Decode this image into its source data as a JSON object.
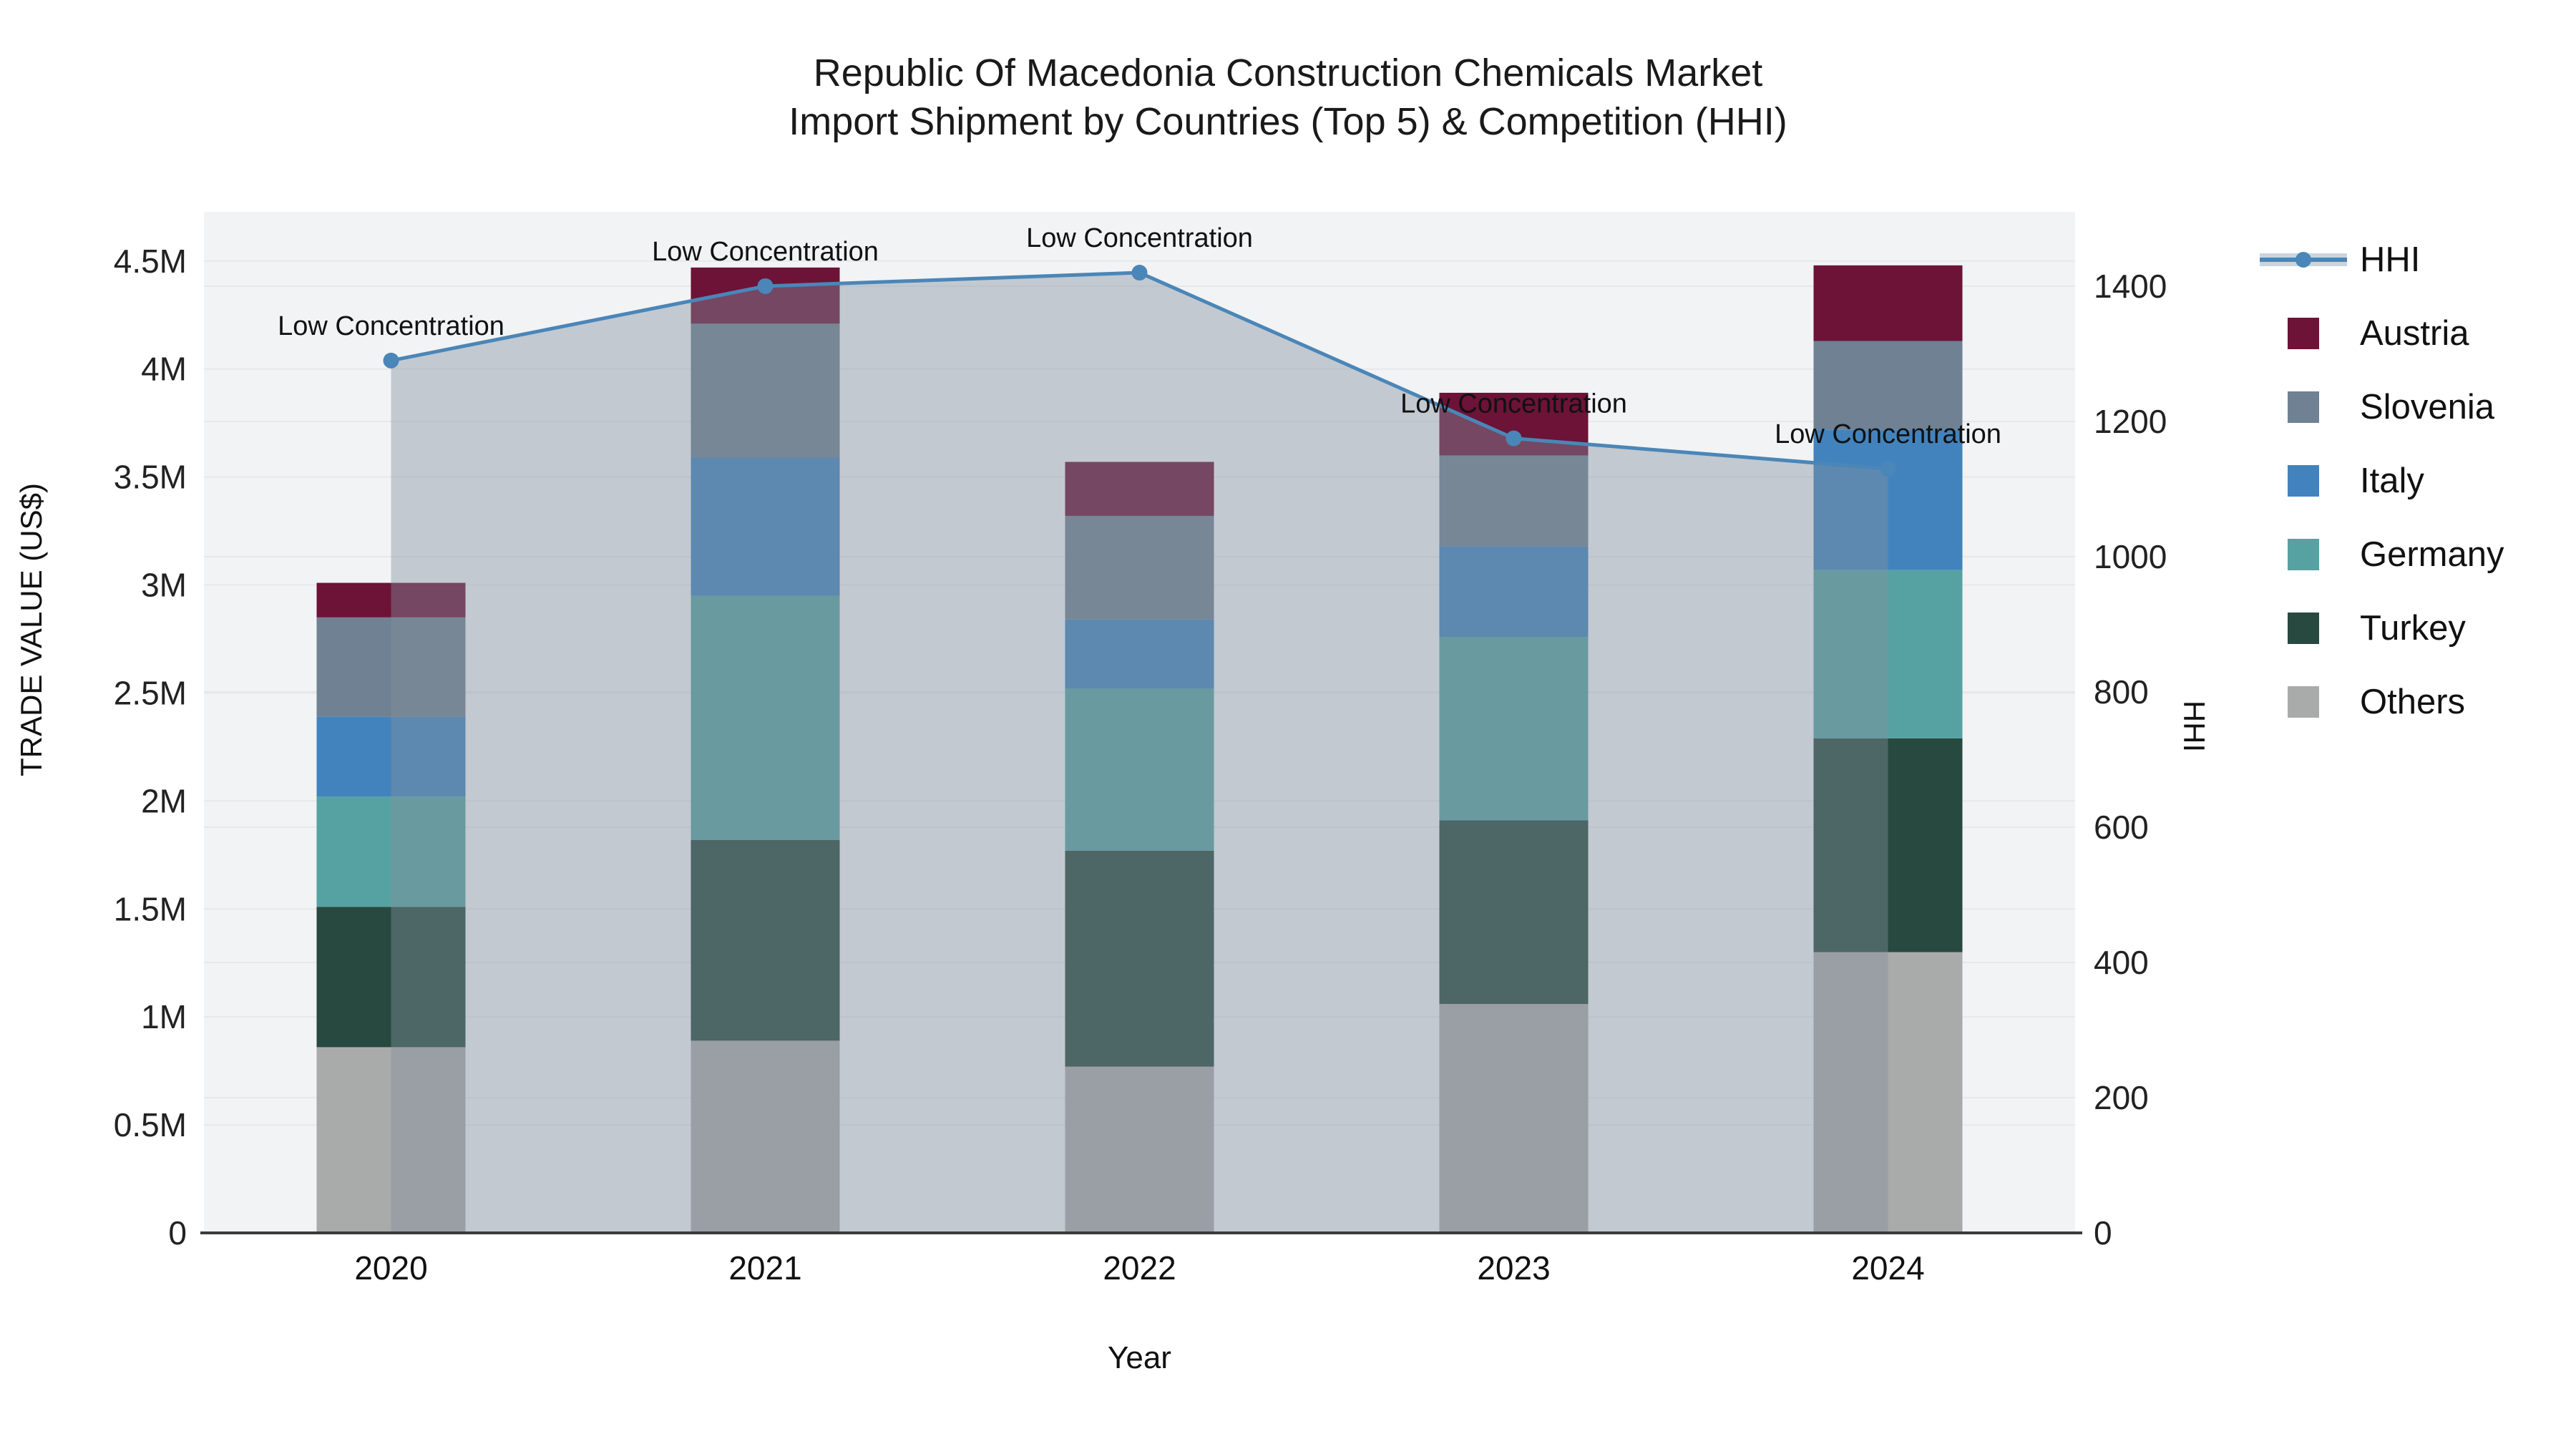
{
  "title": {
    "line1": "Republic Of Macedonia Construction Chemicals Market",
    "line2": "Import Shipment by Countries (Top 5) & Competition (HHI)"
  },
  "chart_data": {
    "type": "combo-stacked-bar-line",
    "categories": [
      "2020",
      "2021",
      "2022",
      "2023",
      "2024"
    ],
    "unit": "M US$",
    "bar_series": [
      {
        "name": "Others",
        "color": "#a9abaa",
        "values": [
          0.86,
          0.89,
          0.77,
          1.06,
          1.3
        ]
      },
      {
        "name": "Turkey",
        "color": "#27493f",
        "values": [
          0.65,
          0.93,
          1.0,
          0.85,
          0.99
        ]
      },
      {
        "name": "Germany",
        "color": "#56a2a2",
        "values": [
          0.51,
          1.13,
          0.75,
          0.85,
          0.78
        ]
      },
      {
        "name": "Italy",
        "color": "#4383bd",
        "values": [
          0.37,
          0.64,
          0.32,
          0.42,
          0.65
        ]
      },
      {
        "name": "Slovenia",
        "color": "#6f8192",
        "values": [
          0.46,
          0.62,
          0.48,
          0.42,
          0.41
        ]
      },
      {
        "name": "Austria",
        "color": "#6c1337",
        "values": [
          0.16,
          0.26,
          0.25,
          0.29,
          0.35
        ]
      }
    ],
    "line_series": {
      "name": "HHI",
      "color": "#4a86b8",
      "fill_color": "rgba(130,142,158,0.42)",
      "values": [
        1290,
        1400,
        1420,
        1175,
        1130
      ]
    },
    "annotations": [
      "Low Concentration",
      "Low Concentration",
      "Low Concentration",
      "Low Concentration",
      "Low Concentration"
    ],
    "axes": {
      "left": {
        "label": "TRADE VALUE (US$)",
        "ticks": [
          "0",
          "0.5M",
          "1M",
          "1.5M",
          "2M",
          "2.5M",
          "3M",
          "3.5M",
          "4M",
          "4.5M"
        ],
        "tick_values": [
          0,
          0.5,
          1,
          1.5,
          2,
          2.5,
          3,
          3.5,
          4,
          4.5
        ],
        "range_max": 4.728
      },
      "right": {
        "label": "HHI",
        "ticks": [
          "0",
          "200",
          "400",
          "600",
          "800",
          "1000",
          "1200",
          "1400"
        ],
        "tick_values": [
          0,
          200,
          400,
          600,
          800,
          1000,
          1200,
          1400
        ],
        "range_max": 1510
      },
      "x": {
        "label": "Year"
      }
    },
    "colors": {
      "plot_background": "#f2f3f4",
      "gridline": "#e6e8ea",
      "axis_line": "#3b3b3b",
      "tick_text": "#222222",
      "annotation_text": "#111111"
    }
  },
  "legend": {
    "items": [
      {
        "label": "HHI",
        "type": "line",
        "color": "#4a86b8"
      },
      {
        "label": "Austria",
        "type": "square",
        "color": "#6c1337"
      },
      {
        "label": "Slovenia",
        "type": "square",
        "color": "#6f8192"
      },
      {
        "label": "Italy",
        "type": "square",
        "color": "#4383bd"
      },
      {
        "label": "Germany",
        "type": "square",
        "color": "#56a2a2"
      },
      {
        "label": "Turkey",
        "type": "square",
        "color": "#27493f"
      },
      {
        "label": "Others",
        "type": "square",
        "color": "#a9abaa"
      }
    ]
  }
}
